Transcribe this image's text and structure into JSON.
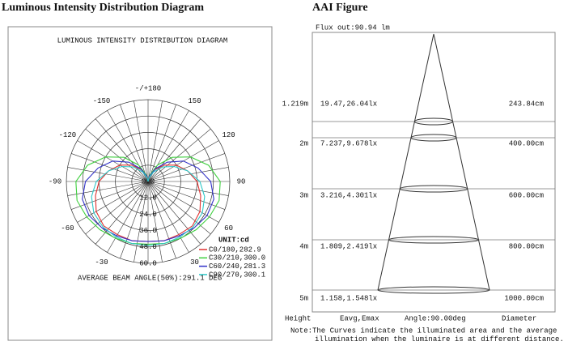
{
  "headings": {
    "left": "Luminous Intensity Distribution Diagram",
    "right": "AAI Figure"
  },
  "chart_data": {
    "type": "polar",
    "title": "LUMINOUS INTENSITY DISTRIBUTION DIAGRAM",
    "angles": [
      0,
      15,
      30,
      45,
      60,
      75,
      90,
      105,
      120,
      135,
      150,
      165,
      180
    ],
    "rlim": [
      0,
      60
    ],
    "rticks": [
      {
        "value": 0,
        "label": "0.0"
      },
      {
        "value": 12,
        "label": "12.0"
      },
      {
        "value": 24,
        "label": "24.0"
      },
      {
        "value": 36,
        "label": "36.0"
      },
      {
        "value": 48,
        "label": "48.0"
      },
      {
        "value": 60,
        "label": "60.0"
      }
    ],
    "angle_ticks": [
      {
        "value": 180,
        "label": "-/+180"
      },
      150,
      120,
      90,
      60,
      30,
      -30,
      -60,
      -90,
      -120,
      -150
    ],
    "legend_title": "UNIT:cd",
    "series": [
      {
        "name": "C0/180,282.9",
        "color": "#e03030",
        "values": [
          44,
          45,
          45,
          46,
          44,
          40,
          36,
          30,
          24,
          17,
          10,
          4,
          0
        ]
      },
      {
        "name": "C30/210,300.0",
        "color": "#40d040",
        "values": [
          46,
          47,
          48,
          50,
          52,
          54,
          53,
          46,
          36,
          25,
          14,
          5,
          0
        ]
      },
      {
        "name": "C60/240,281.3",
        "color": "#3030c8",
        "values": [
          44,
          45,
          46,
          48,
          50,
          50,
          46,
          38,
          30,
          20,
          11,
          4,
          0
        ]
      },
      {
        "name": "C90/270,300.1",
        "color": "#30c8c8",
        "values": [
          47,
          47,
          47,
          47,
          46,
          43,
          38,
          30,
          22,
          15,
          8,
          3,
          0
        ]
      }
    ],
    "footer": "AVERAGE BEAM ANGLE(50%):291.1 DEG"
  },
  "aai": {
    "flux": "Flux out:90.94 lm",
    "rows": [
      {
        "height": "1.219m",
        "illum": "19.47,26.04lx",
        "diameter": "243.84cm"
      },
      {
        "height": "2m",
        "illum": "7.237,9.678lx",
        "diameter": "400.00cm"
      },
      {
        "height": "3m",
        "illum": "3.216,4.301lx",
        "diameter": "600.00cm"
      },
      {
        "height": "4m",
        "illum": "1.809,2.419lx",
        "diameter": "800.00cm"
      },
      {
        "height": "5m",
        "illum": "1.158,1.548lx",
        "diameter": "1000.00cm"
      }
    ],
    "columns": [
      "Height",
      "Eavg,Emax",
      "Angle:90.00deg",
      "Diameter"
    ],
    "note": [
      "Note:The Curves indicate the illuminated area and the average",
      "illumination when the luminaire is at different distance."
    ]
  }
}
